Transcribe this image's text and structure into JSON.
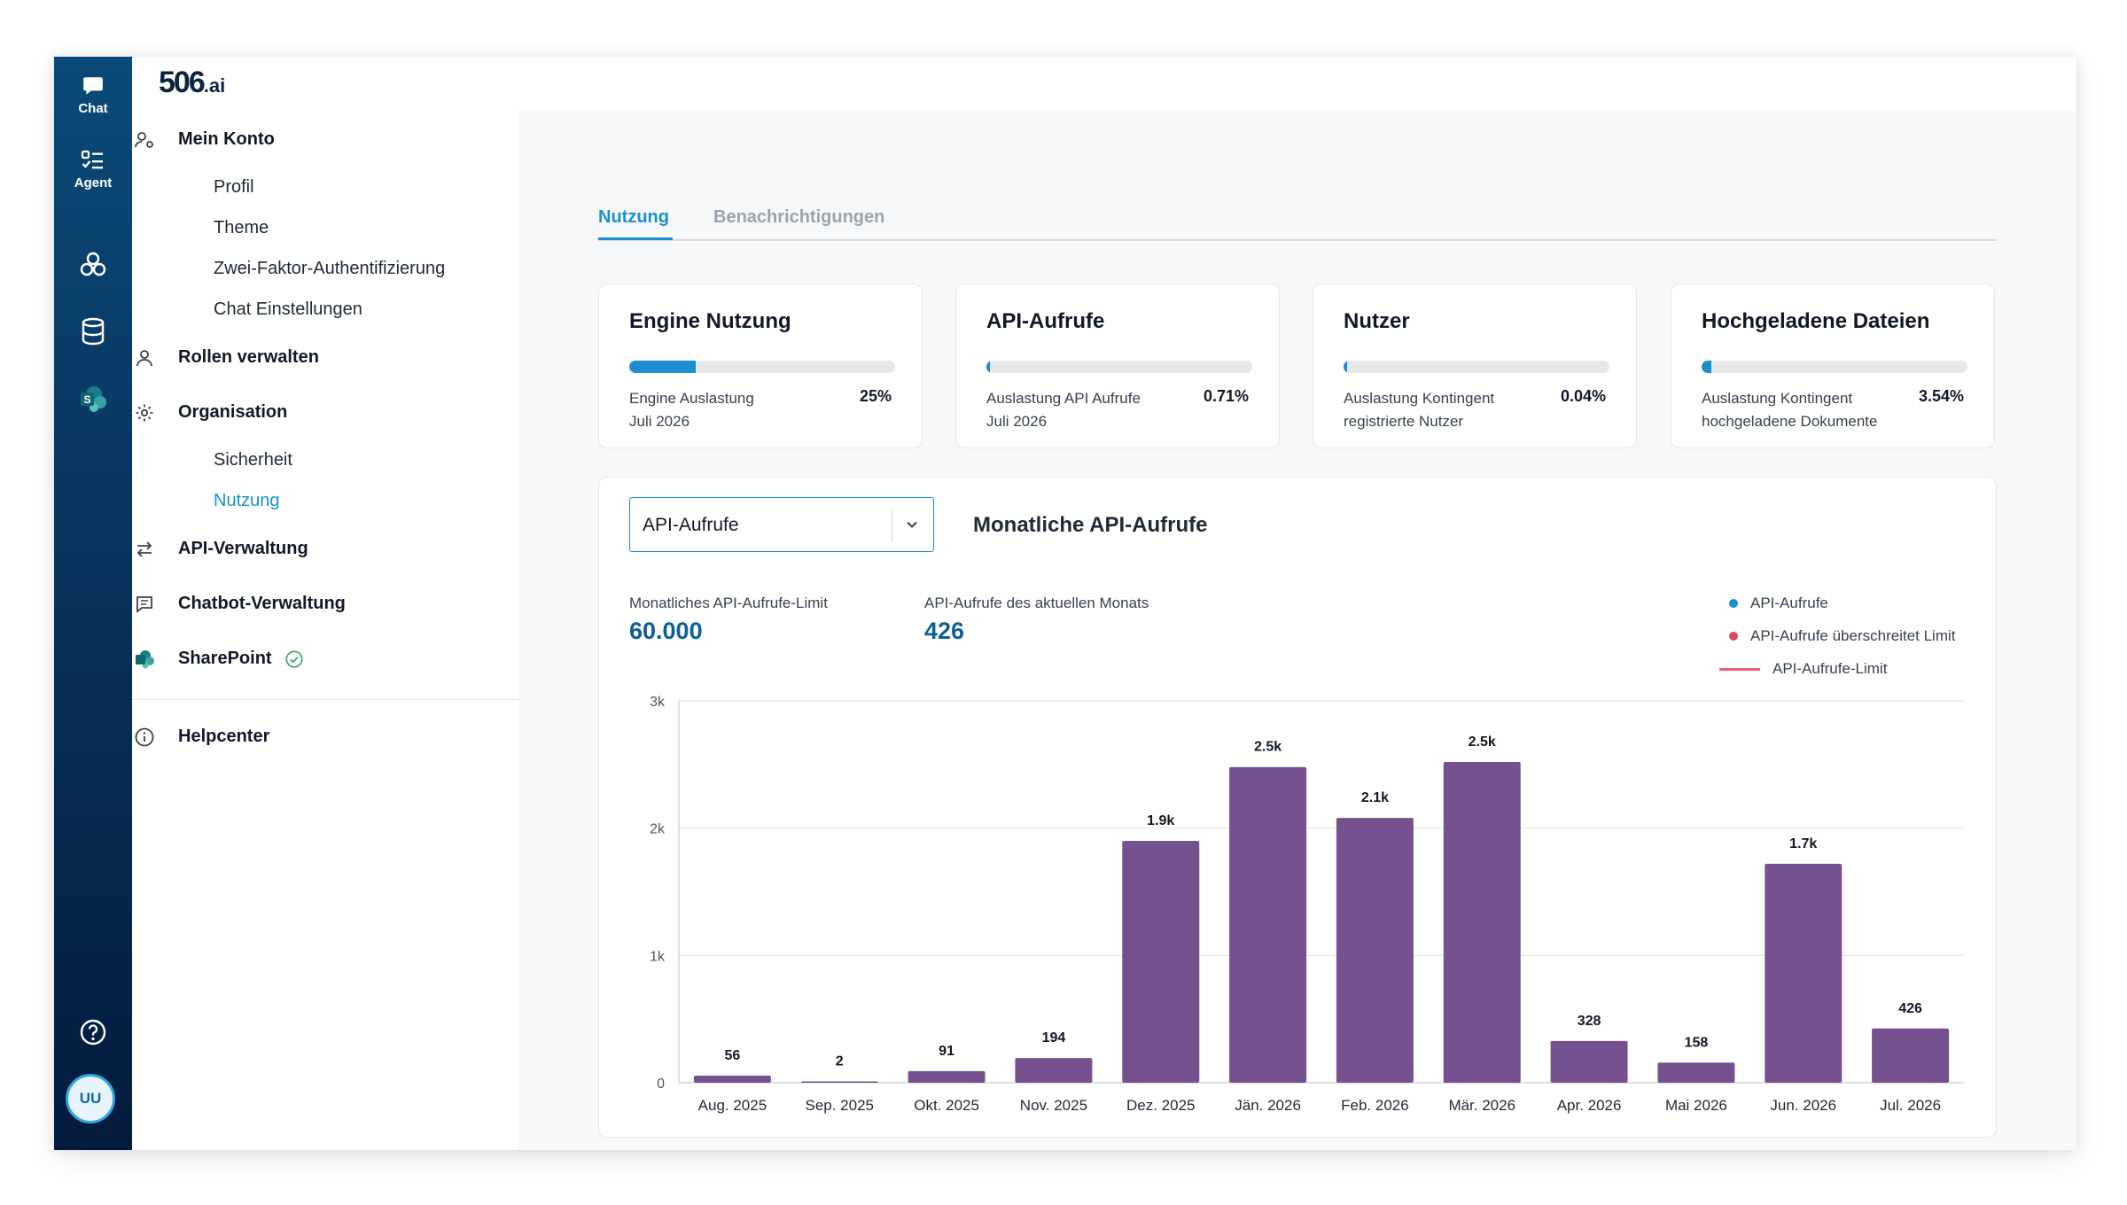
{
  "rail": {
    "chat_label": "Chat",
    "agent_label": "Agent",
    "avatar_initials": "UU"
  },
  "sidebar": {
    "logo_main": "506",
    "logo_suffix": ".ai",
    "mein_konto": "Mein Konto",
    "profil": "Profil",
    "theme": "Theme",
    "zwei_faktor": "Zwei-Faktor-Authentifizierung",
    "chat_einstellungen": "Chat Einstellungen",
    "rollen": "Rollen verwalten",
    "organisation": "Organisation",
    "sicherheit": "Sicherheit",
    "nutzung": "Nutzung",
    "api_verwaltung": "API-Verwaltung",
    "chatbot_verwaltung": "Chatbot-Verwaltung",
    "sharepoint": "SharePoint",
    "helpcenter": "Helpcenter"
  },
  "tabs": {
    "nutzung": "Nutzung",
    "benachrichtigungen": "Benachrichtigungen"
  },
  "cards": [
    {
      "title": "Engine Nutzung",
      "label1": "Engine Auslastung",
      "label2": "Juli 2026",
      "pct": "25%",
      "fill": 0.25
    },
    {
      "title": "API-Aufrufe",
      "label1": "Auslastung API Aufrufe",
      "label2": "Juli 2026",
      "pct": "0.71%",
      "fill": 0.0071
    },
    {
      "title": "Nutzer",
      "label1": "Auslastung Kontingent",
      "label2": "registrierte Nutzer",
      "pct": "0.04%",
      "fill": 0.0004
    },
    {
      "title": "Hochgeladene Dateien",
      "label1": "Auslastung Kontingent",
      "label2": "hochgeladene Dokumente",
      "pct": "3.54%",
      "fill": 0.0354
    }
  ],
  "chart_panel": {
    "select_value": "API-Aufrufe",
    "title": "Monatliche API-Aufrufe",
    "limit_label": "Monatliches API-Aufrufe-Limit",
    "limit_value": "60.000",
    "current_label": "API-Aufrufe des aktuellen Monats",
    "current_value": "426",
    "legend": [
      "API-Aufrufe",
      "API-Aufrufe überschreitet Limit",
      "API-Aufrufe-Limit"
    ]
  },
  "colors": {
    "accent": "#1a8fcf",
    "bar": "#75528f",
    "over_limit": "#e0445e",
    "limit_line": "#e85d75"
  },
  "chart_data": {
    "type": "bar",
    "categories": [
      "Aug. 2025",
      "Sep. 2025",
      "Okt. 2025",
      "Nov. 2025",
      "Dez. 2025",
      "Jän. 2026",
      "Feb. 2026",
      "Mär. 2026",
      "Apr. 2026",
      "Mai 2026",
      "Jun. 2026",
      "Jul. 2026"
    ],
    "values": [
      56,
      2,
      91,
      194,
      1900,
      2480,
      2080,
      2520,
      328,
      158,
      1720,
      426
    ],
    "data_labels": [
      "56",
      "2",
      "91",
      "194",
      "1.9k",
      "2.5k",
      "2.1k",
      "2.5k",
      "328",
      "158",
      "1.7k",
      "426"
    ],
    "yticks": [
      0,
      1000,
      2000,
      3000
    ],
    "ytick_labels": [
      "0",
      "1k",
      "2k",
      "3k"
    ],
    "ylim": [
      0,
      3000
    ],
    "grid": true,
    "legend_position": "top-right"
  }
}
